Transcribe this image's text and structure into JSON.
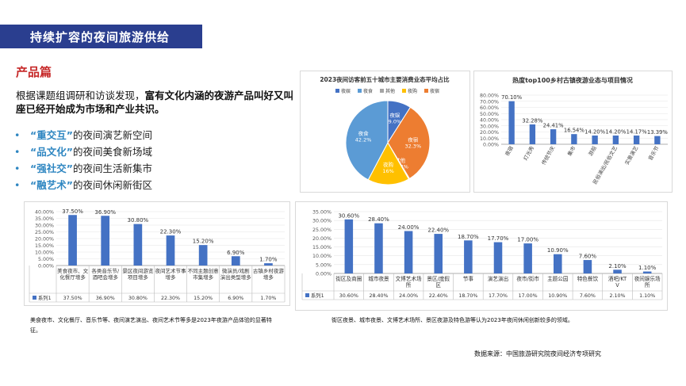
{
  "header": {
    "title": "持续扩容的夜间旅游供给"
  },
  "section": {
    "title": "产品篇"
  },
  "intro": {
    "plain": "根据课题组调研和访谈发现，",
    "bold": "富有文化内涵的夜游产品叫好又叫座已经开始成为市场和产业共识。"
  },
  "bullets": [
    {
      "hl": "“重交互”",
      "rest": "的夜间演艺新空间"
    },
    {
      "hl": "“品文化”",
      "rest": "的夜间美食新场域"
    },
    {
      "hl": "“强社交”",
      "rest": "的夜间生活新集市"
    },
    {
      "hl": "“融艺术”",
      "rest": "的夜间休闲新街区"
    }
  ],
  "footnotes": {
    "left": "美食夜市、文化餐厅、音乐节等、夜间演艺演出、夜间艺术节等多是2023年夜游产品体验的显著特征。",
    "right": "街区夜景、城市夜景、文博艺术场所、景区夜游及特色游等认为2023年夜间休闲创新较多的领域。"
  },
  "source": "数据来源：中国旅游研究院夜间经济专项研究",
  "chart_data": [
    {
      "type": "pie",
      "title": "2023夜间访客前五十城市主要消费业态平均占比",
      "legend": [
        "夜娱",
        "夜食",
        "其他",
        "夜购",
        "夜宿"
      ],
      "legend_position": "top",
      "slices": [
        {
          "name": "夜娱",
          "value": 9.0,
          "label": "夜娱\n9.0%",
          "color": "#4472c4"
        },
        {
          "name": "夜宿",
          "value": 32.3,
          "label": "夜宿\n32.3%",
          "color": "#ed7d31"
        },
        {
          "name": "其他",
          "value": 0.34,
          "label": "其他\n0.34%",
          "color": "#a5a5a5"
        },
        {
          "name": "夜购",
          "value": 16.0,
          "label": "夜购\n16%",
          "color": "#ffc000"
        },
        {
          "name": "夜食",
          "value": 42.2,
          "label": "夜食\n42.2%",
          "color": "#5b9bd5"
        }
      ]
    },
    {
      "type": "bar",
      "title": "热度top100乡村古镇夜游业态与项目情况",
      "categories": [
        "夜宿",
        "灯光秀",
        "传统节庆",
        "集市",
        "游船",
        "民俗演出/民俗文艺",
        "实景演艺",
        "音乐节"
      ],
      "values": [
        70.1,
        32.28,
        24.41,
        16.54,
        14.2,
        14.2,
        14.17,
        13.39
      ],
      "data_labels": [
        "70.10%",
        "32.28%",
        "24.41%",
        "16.54%",
        "14.20%",
        "14.20%",
        "14.17%",
        "13.39%"
      ],
      "ylim": [
        0,
        80
      ],
      "yticks": [
        "0.00%",
        "10.00%",
        "20.00%",
        "30.00%",
        "40.00%",
        "50.00%",
        "60.00%",
        "70.00%",
        "80.00%"
      ],
      "color": "#4472c4"
    },
    {
      "type": "bar",
      "title": "",
      "categories": [
        "美食夜市、文化餐厅增多",
        "各类音乐节/酒吧会增多",
        "景区夜间游览项目增多",
        "夜间艺术节事增多",
        "不同主题创意市集增多",
        "微演员/戏剧演出类型增多",
        "古镇乡村夜游增多"
      ],
      "series": [
        {
          "name": "系列1",
          "values": [
            37.5,
            36.9,
            30.8,
            22.3,
            15.2,
            6.9,
            1.7
          ]
        }
      ],
      "data_labels": [
        "37.50%",
        "36.90%",
        "30.80%",
        "22.30%",
        "15.20%",
        "6.90%",
        "1.70%"
      ],
      "ylim": [
        0,
        40
      ],
      "yticks": [
        "0.00%",
        "5.00%",
        "10.00%",
        "15.00%",
        "20.00%",
        "25.00%",
        "30.00%",
        "35.00%",
        "40.00%"
      ],
      "table": true,
      "color": "#4472c4"
    },
    {
      "type": "bar",
      "title": "",
      "categories": [
        "街区及商圈",
        "城市夜景",
        "文博艺术场所",
        "景区/度假区",
        "节事",
        "演艺演出",
        "夜市/街市",
        "主题公园",
        "特色餐饮",
        "酒吧/KTV",
        "夜间娱乐场所"
      ],
      "series": [
        {
          "name": "系列1",
          "values": [
            30.6,
            28.4,
            24.0,
            22.4,
            18.7,
            17.7,
            17.0,
            10.9,
            7.6,
            2.1,
            1.1
          ]
        }
      ],
      "data_labels": [
        "30.60%",
        "28.40%",
        "24.00%",
        "22.40%",
        "18.70%",
        "17.70%",
        "17.00%",
        "10.90%",
        "7.60%",
        "2.10%",
        "1.10%"
      ],
      "ylim": [
        0,
        35
      ],
      "yticks": [
        "0.00%",
        "5.00%",
        "10.00%",
        "15.00%",
        "20.00%",
        "25.00%",
        "30.00%",
        "35.00%"
      ],
      "table": true,
      "color": "#4472c4"
    }
  ]
}
